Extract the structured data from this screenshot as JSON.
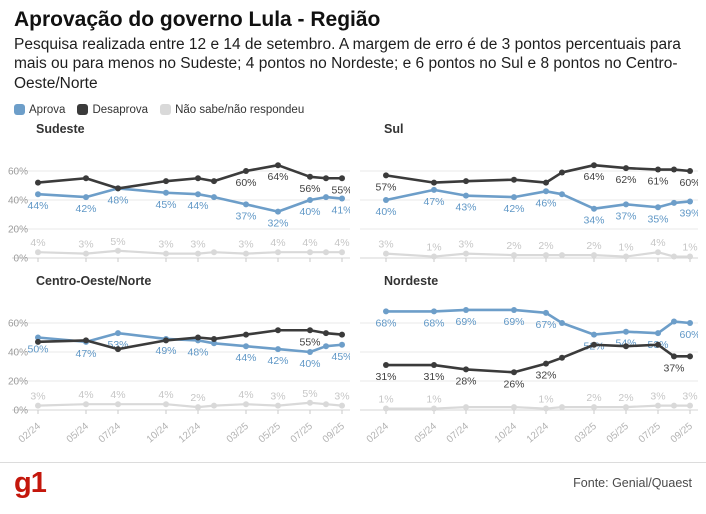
{
  "header": {
    "title": "Aprovação do governo Lula - Região",
    "subtitle": "Pesquisa realizada entre 12 e 14 de setembro. A margem de erro é de 3 pontos percentuais para mais ou para menos no Sudeste; 4 pontos no Nordeste; e 6 pontos no Sul e 8 pontos no Centro-Oeste/Norte"
  },
  "legend": [
    {
      "label": "Aprova",
      "color": "#6d9ec9"
    },
    {
      "label": "Desaprova",
      "color": "#3b3b3b"
    },
    {
      "label": "Não sabe/não respondeu",
      "color": "#d9d9d9"
    }
  ],
  "colors": {
    "grid": "#e8e8e8",
    "baseline": "#d6d6d6",
    "tick": "#c9c9c9",
    "axis_text": "#9b9b9b",
    "date_text": "#b3b3b3",
    "chart_title": "#333333"
  },
  "footer": {
    "logo": "g1",
    "source": "Fonte: Genial/Quaest"
  },
  "chart_data": {
    "type": "line",
    "x_tick_labels": [
      "02/24",
      "05/24",
      "07/24",
      "10/24",
      "12/24",
      "03/25",
      "05/25",
      "07/25",
      "09/25"
    ],
    "x_tick_months": [
      0,
      3,
      5,
      8,
      10,
      13,
      15,
      17,
      19
    ],
    "x_months": [
      0,
      3,
      5,
      8,
      10,
      11,
      13,
      15,
      17,
      18,
      19
    ],
    "y_ticks": [
      "60%",
      "40%",
      "20%",
      "0%"
    ],
    "y_gridline_values": [
      60,
      40,
      20,
      0
    ],
    "ylim": [
      0,
      72
    ],
    "legend_position": "top",
    "charts": [
      {
        "title": "Sudeste",
        "show_y_axis": true,
        "show_x_labels": false,
        "series": [
          {
            "name": "Não sabe/não respondeu",
            "stroke": "#d9d9d9",
            "label_color": "#c6c6c6",
            "label_side": "above",
            "values": [
              4,
              3,
              5,
              3,
              3,
              4,
              3,
              4,
              4,
              4,
              4
            ],
            "labels": [
              "4%",
              "3%",
              "5%",
              "3%",
              "3%",
              null,
              "3%",
              "4%",
              "4%",
              null,
              "4%"
            ]
          },
          {
            "name": "Aprova",
            "stroke": "#6d9ec9",
            "label_color": "#5f97c6",
            "label_side": "below",
            "values": [
              44,
              42,
              48,
              45,
              44,
              42,
              37,
              32,
              40,
              42,
              41
            ],
            "labels": [
              "44%",
              "42%",
              "48%",
              "45%",
              "44%",
              null,
              "37%",
              "32%",
              "40%",
              null,
              "41%"
            ]
          },
          {
            "name": "Desaprova",
            "stroke": "#3b3b3b",
            "label_color": "#3f3f3f",
            "label_side": "below",
            "values": [
              52,
              55,
              48,
              53,
              55,
              53,
              60,
              64,
              56,
              55,
              55
            ],
            "labels": [
              null,
              null,
              null,
              null,
              null,
              null,
              "60%",
              "64%",
              "56%",
              null,
              "55%"
            ]
          }
        ]
      },
      {
        "title": "Sul",
        "show_y_axis": false,
        "show_x_labels": false,
        "series": [
          {
            "name": "Não sabe/não respondeu",
            "stroke": "#d9d9d9",
            "label_color": "#c6c6c6",
            "label_side": "above",
            "values": [
              3,
              1,
              3,
              2,
              2,
              2,
              2,
              1,
              4,
              1,
              1
            ],
            "labels": [
              "3%",
              "1%",
              "3%",
              "2%",
              "2%",
              null,
              "2%",
              "1%",
              "4%",
              null,
              "1%"
            ]
          },
          {
            "name": "Aprova",
            "stroke": "#6d9ec9",
            "label_color": "#5f97c6",
            "label_side": "below",
            "values": [
              40,
              47,
              43,
              42,
              46,
              44,
              34,
              37,
              35,
              38,
              39
            ],
            "labels": [
              "40%",
              "47%",
              "43%",
              "42%",
              "46%",
              null,
              "34%",
              "37%",
              "35%",
              null,
              "39%"
            ]
          },
          {
            "name": "Desaprova",
            "stroke": "#3b3b3b",
            "label_color": "#3f3f3f",
            "label_side": "below",
            "values": [
              57,
              52,
              53,
              54,
              52,
              59,
              64,
              62,
              61,
              61,
              60
            ],
            "labels": [
              "57%",
              null,
              null,
              null,
              null,
              null,
              "64%",
              "62%",
              "61%",
              null,
              "60%"
            ]
          }
        ]
      },
      {
        "title": "Centro-Oeste/Norte",
        "show_y_axis": true,
        "show_x_labels": true,
        "series": [
          {
            "name": "Não sabe/não respondeu",
            "stroke": "#d9d9d9",
            "label_color": "#c6c6c6",
            "label_side": "above",
            "values": [
              3,
              4,
              4,
              4,
              2,
              3,
              4,
              3,
              5,
              4,
              3
            ],
            "labels": [
              "3%",
              "4%",
              "4%",
              "4%",
              "2%",
              null,
              "4%",
              "3%",
              "5%",
              null,
              "3%"
            ]
          },
          {
            "name": "Aprova",
            "stroke": "#6d9ec9",
            "label_color": "#5f97c6",
            "label_side": "below",
            "values": [
              50,
              47,
              53,
              49,
              48,
              46,
              44,
              42,
              40,
              44,
              45
            ],
            "labels": [
              "50%",
              "47%",
              "53%",
              "49%",
              "48%",
              null,
              "44%",
              "42%",
              "40%",
              null,
              "45%"
            ]
          },
          {
            "name": "Desaprova",
            "stroke": "#3b3b3b",
            "label_color": "#3f3f3f",
            "label_side": "below",
            "values": [
              47,
              48,
              42,
              48,
              50,
              49,
              52,
              55,
              55,
              53,
              52
            ],
            "labels": [
              null,
              null,
              null,
              null,
              null,
              null,
              null,
              null,
              "55%",
              null,
              null
            ]
          }
        ]
      },
      {
        "title": "Nordeste",
        "show_y_axis": false,
        "show_x_labels": true,
        "series": [
          {
            "name": "Não sabe/não respondeu",
            "stroke": "#d9d9d9",
            "label_color": "#c6c6c6",
            "label_side": "above",
            "values": [
              1,
              1,
              2,
              2,
              1,
              2,
              2,
              2,
              3,
              3,
              3
            ],
            "labels": [
              "1%",
              "1%",
              null,
              null,
              "1%",
              null,
              "2%",
              "2%",
              "3%",
              null,
              "3%"
            ]
          },
          {
            "name": "Aprova",
            "stroke": "#6d9ec9",
            "label_color": "#5f97c6",
            "label_side": "below",
            "values": [
              68,
              68,
              69,
              69,
              67,
              60,
              52,
              54,
              53,
              61,
              60
            ],
            "labels": [
              "68%",
              "68%",
              "69%",
              "69%",
              "67%",
              null,
              "52%",
              "54%",
              "53%",
              null,
              "60%"
            ]
          },
          {
            "name": "Desaprova",
            "stroke": "#3b3b3b",
            "label_color": "#3f3f3f",
            "label_side": "below",
            "values": [
              31,
              31,
              28,
              26,
              32,
              36,
              45,
              44,
              45,
              37,
              37
            ],
            "labels": [
              "31%",
              "31%",
              "28%",
              "26%",
              "32%",
              null,
              null,
              null,
              null,
              "37%",
              null
            ]
          }
        ]
      }
    ]
  }
}
